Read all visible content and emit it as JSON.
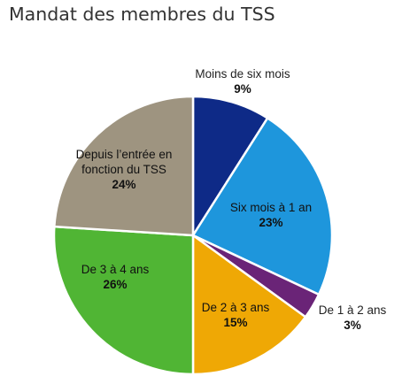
{
  "chart_data": {
    "type": "pie",
    "title": "Mandat des membres du TSS",
    "slices": [
      {
        "label": "Moins de six mois",
        "value": 9,
        "value_label": "9%",
        "color": "#0E2A87",
        "text_color": "#222222"
      },
      {
        "label": "Six mois à 1 an",
        "value": 23,
        "value_label": "23%",
        "color": "#1E96DC",
        "text_color": "#111111"
      },
      {
        "label": "De 1 à 2 ans",
        "value": 3,
        "value_label": "3%",
        "color": "#6A2477",
        "text_color": "#222222"
      },
      {
        "label": "De 2 à 3 ans",
        "value": 15,
        "value_label": "15%",
        "color": "#EFA805",
        "text_color": "#111111"
      },
      {
        "label": "De 3 à 4 ans",
        "value": 26,
        "value_label": "26%",
        "color": "#50B534",
        "text_color": "#111111"
      },
      {
        "label": "Depuis l’entrée en fonction du TSS",
        "label_lines": [
          "Depuis l’entrée en",
          "fonction du TSS"
        ],
        "value": 24,
        "value_label": "24%",
        "color": "#9E9480",
        "text_color": "#111111"
      }
    ]
  }
}
